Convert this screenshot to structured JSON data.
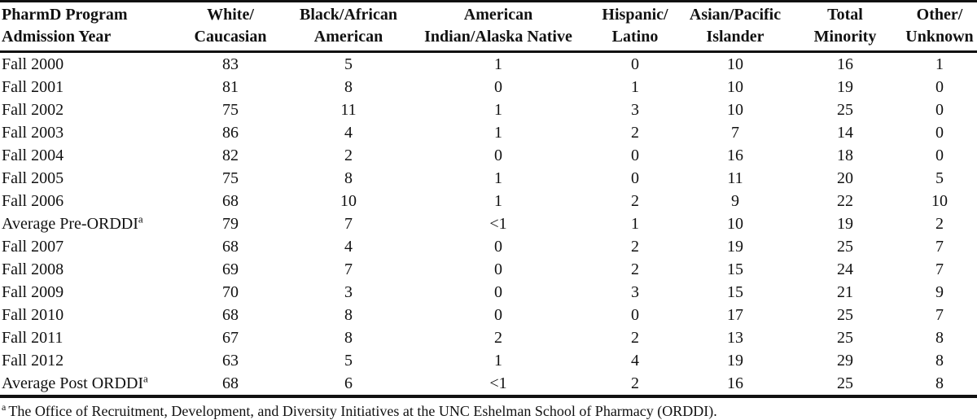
{
  "table": {
    "columns": [
      {
        "id": "admission-year",
        "line1": "PharmD Program",
        "line2": "Admission Year"
      },
      {
        "id": "white-caucasian",
        "line1": "White/",
        "line2": "Caucasian"
      },
      {
        "id": "black-african-american",
        "line1": "Black/African",
        "line2": "American"
      },
      {
        "id": "american-indian-alaska-native",
        "line1": "American",
        "line2": "Indian/Alaska Native"
      },
      {
        "id": "hispanic-latino",
        "line1": "Hispanic/",
        "line2": "Latino"
      },
      {
        "id": "asian-pacific-islander",
        "line1": "Asian/Pacific",
        "line2": "Islander"
      },
      {
        "id": "total-minority",
        "line1": "Total",
        "line2": "Minority"
      },
      {
        "id": "other-unknown",
        "line1": "Other/",
        "line2": "Unknown"
      }
    ],
    "rows": [
      {
        "label": "Fall 2000",
        "sup": "",
        "values": [
          "83",
          "5",
          "1",
          "0",
          "10",
          "16",
          "1"
        ]
      },
      {
        "label": "Fall 2001",
        "sup": "",
        "values": [
          "81",
          "8",
          "0",
          "1",
          "10",
          "19",
          "0"
        ]
      },
      {
        "label": "Fall 2002",
        "sup": "",
        "values": [
          "75",
          "11",
          "1",
          "3",
          "10",
          "25",
          "0"
        ]
      },
      {
        "label": "Fall 2003",
        "sup": "",
        "values": [
          "86",
          "4",
          "1",
          "2",
          "7",
          "14",
          "0"
        ]
      },
      {
        "label": "Fall 2004",
        "sup": "",
        "values": [
          "82",
          "2",
          "0",
          "0",
          "16",
          "18",
          "0"
        ]
      },
      {
        "label": "Fall 2005",
        "sup": "",
        "values": [
          "75",
          "8",
          "1",
          "0",
          "11",
          "20",
          "5"
        ]
      },
      {
        "label": "Fall 2006",
        "sup": "",
        "values": [
          "68",
          "10",
          "1",
          "2",
          "9",
          "22",
          "10"
        ]
      },
      {
        "label": "Average Pre-ORDDI",
        "sup": "a",
        "values": [
          "79",
          "7",
          "<1",
          "1",
          "10",
          "19",
          "2"
        ]
      },
      {
        "label": "Fall 2007",
        "sup": "",
        "values": [
          "68",
          "4",
          "0",
          "2",
          "19",
          "25",
          "7"
        ]
      },
      {
        "label": "Fall 2008",
        "sup": "",
        "values": [
          "69",
          "7",
          "0",
          "2",
          "15",
          "24",
          "7"
        ]
      },
      {
        "label": "Fall 2009",
        "sup": "",
        "values": [
          "70",
          "3",
          "0",
          "3",
          "15",
          "21",
          "9"
        ]
      },
      {
        "label": "Fall 2010",
        "sup": "",
        "values": [
          "68",
          "8",
          "0",
          "0",
          "17",
          "25",
          "7"
        ]
      },
      {
        "label": "Fall 2011",
        "sup": "",
        "values": [
          "67",
          "8",
          "2",
          "2",
          "13",
          "25",
          "8"
        ]
      },
      {
        "label": "Fall 2012",
        "sup": "",
        "values": [
          "63",
          "5",
          "1",
          "4",
          "19",
          "29",
          "8"
        ]
      },
      {
        "label": "Average Post ORDDI",
        "sup": "a",
        "values": [
          "68",
          "6",
          "<1",
          "2",
          "16",
          "25",
          "8"
        ]
      }
    ],
    "footnote": {
      "marker": "a",
      "text": "The Office of Recruitment, Development, and Diversity Initiatives at the UNC Eshelman School of Pharmacy (ORDDI)."
    },
    "colors": {
      "text": "#111111",
      "rule": "#111111",
      "background": "#ffffff"
    }
  }
}
